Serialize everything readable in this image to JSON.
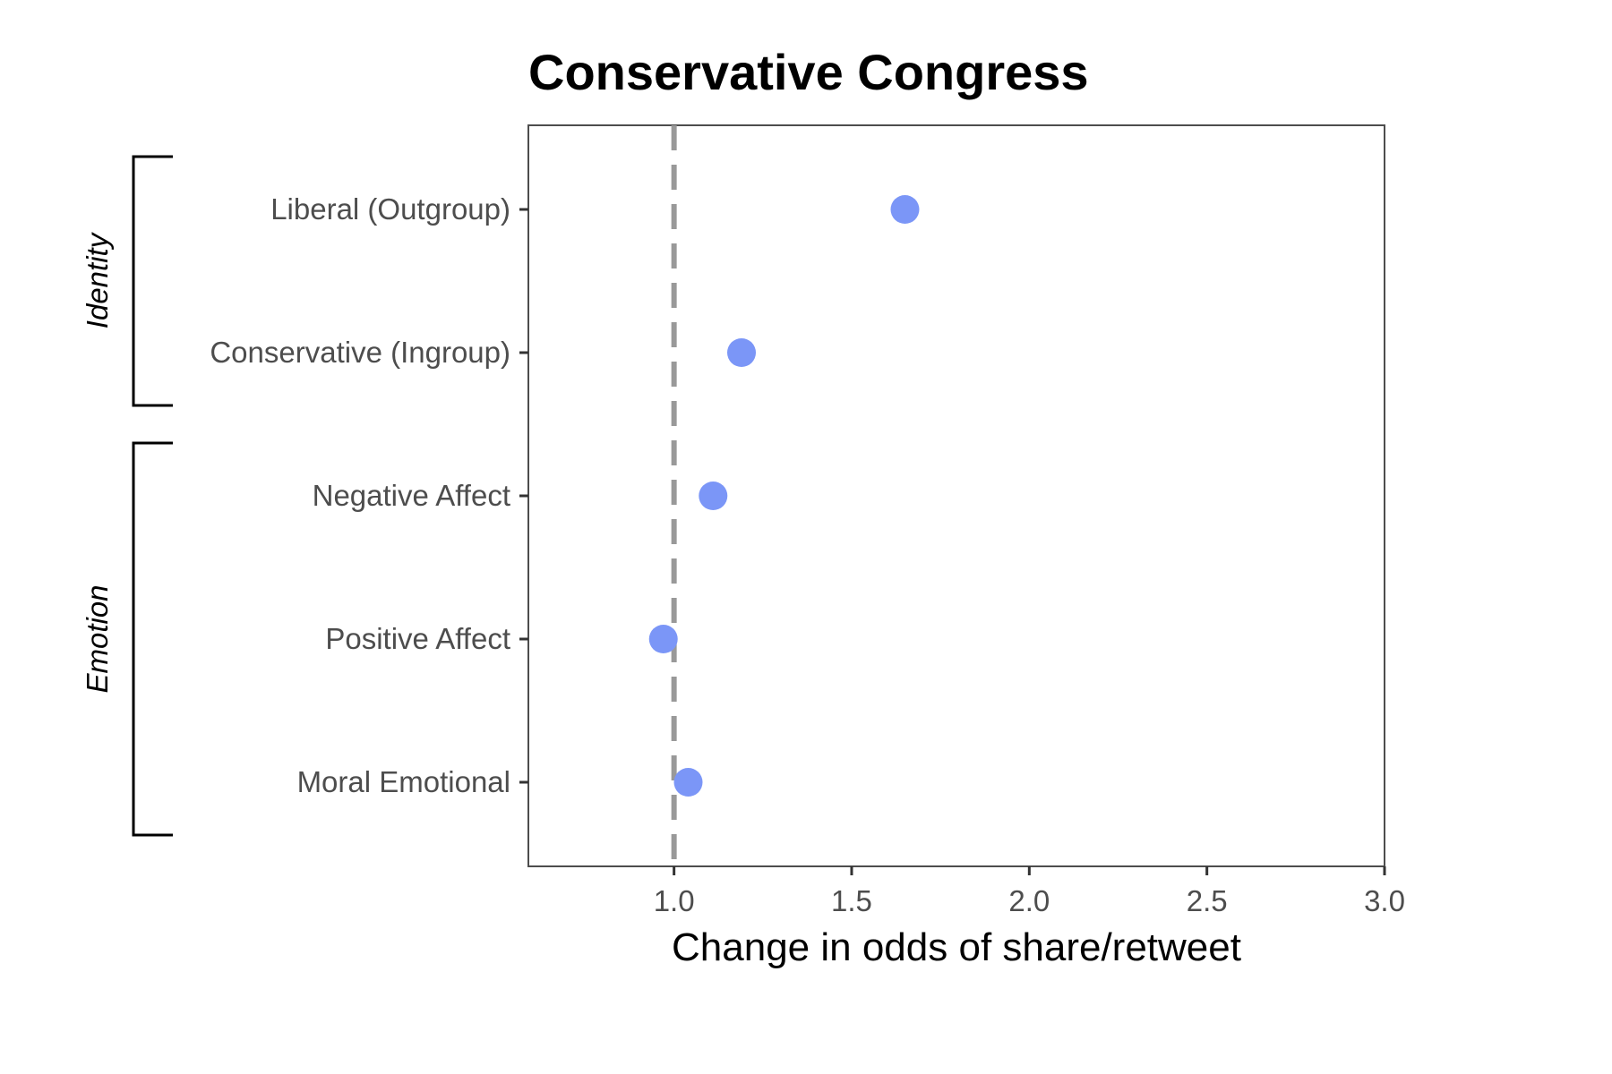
{
  "chart_data": {
    "type": "scatter",
    "title": "Conservative Congress",
    "xlabel": "Change in odds of share/retweet",
    "ylabel": "",
    "xlim": [
      0.59,
      3.0
    ],
    "xticks": [
      "1.0",
      "1.5",
      "2.0",
      "2.5",
      "3.0"
    ],
    "reference_line": {
      "x": 1.0,
      "style": "dashed",
      "color": "#999999"
    },
    "grid": false,
    "legend": "none",
    "point_color": "#7b96f7",
    "categories": [
      "Liberal (Outgroup)",
      "Conservative (Ingroup)",
      "Negative Affect",
      "Positive Affect",
      "Moral Emotional"
    ],
    "values": [
      1.65,
      1.19,
      1.11,
      0.97,
      1.04
    ],
    "groups": [
      {
        "label": "Identity",
        "categories": [
          "Liberal (Outgroup)",
          "Conservative (Ingroup)"
        ]
      },
      {
        "label": "Emotion",
        "categories": [
          "Negative Affect",
          "Positive Affect",
          "Moral Emotional"
        ]
      }
    ]
  }
}
